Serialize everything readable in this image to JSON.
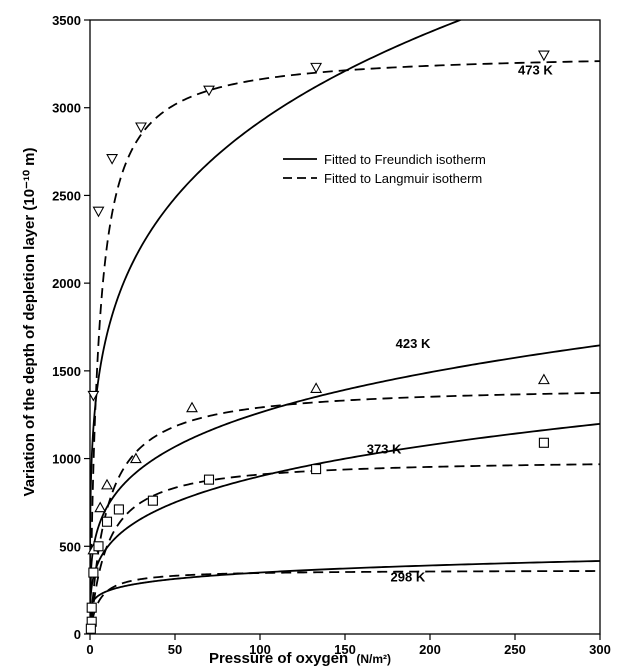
{
  "chart_data": {
    "type": "scatter",
    "xlabel": "Pressure of oxygen",
    "xlabel_unit": "(N/m²)",
    "ylabel": "Variation of the depth of depletion layer (10⁻¹⁰ m)",
    "xlim": [
      0,
      300
    ],
    "ylim": [
      0,
      3500
    ],
    "xticks": [
      0,
      50,
      100,
      150,
      200,
      250,
      300
    ],
    "yticks": [
      0,
      500,
      1000,
      1500,
      2000,
      2500,
      3000,
      3500
    ],
    "legend": {
      "placement": "upper-right",
      "entries": [
        {
          "label": "Fitted to Freundich isotherm",
          "style": "solid"
        },
        {
          "label": "Fitted to Langmuir isotherm",
          "style": "dashed"
        }
      ]
    },
    "series": [
      {
        "name": "473 K",
        "marker": "triangle-down",
        "points": [
          [
            2,
            1360
          ],
          [
            5,
            2410
          ],
          [
            13,
            2710
          ],
          [
            30,
            2890
          ],
          [
            70,
            3100
          ],
          [
            133,
            3230
          ],
          [
            267,
            3300
          ]
        ],
        "freundlich": {
          "a": 1000,
          "b": 0.2327
        },
        "langmuir": {
          "vmax": 3320,
          "k": 0.2
        },
        "label_pos": [
          262,
          3190
        ]
      },
      {
        "name": "423 K",
        "marker": "triangle-up",
        "points": [
          [
            2,
            480
          ],
          [
            6,
            720
          ],
          [
            10,
            850
          ],
          [
            27,
            1000
          ],
          [
            60,
            1290
          ],
          [
            133,
            1400
          ],
          [
            267,
            1450
          ]
        ],
        "freundlich": {
          "a": 415,
          "b": 0.2415
        },
        "langmuir": {
          "vmax": 1420,
          "k": 0.1
        },
        "label_pos": [
          190,
          1630
        ]
      },
      {
        "name": "373 K",
        "marker": "square",
        "points": [
          [
            1,
            70
          ],
          [
            2,
            350
          ],
          [
            5,
            500
          ],
          [
            10,
            640
          ],
          [
            17,
            710
          ],
          [
            37,
            760
          ],
          [
            70,
            880
          ],
          [
            133,
            940
          ],
          [
            267,
            1090
          ]
        ],
        "freundlich": {
          "a": 270,
          "b": 0.2612
        },
        "langmuir": {
          "vmax": 1000,
          "k": 0.1
        },
        "label_pos": [
          173,
          1030
        ]
      },
      {
        "name": "298 K",
        "marker": "square",
        "points": [
          [
            0.5,
            30
          ],
          [
            1,
            150
          ]
        ],
        "freundlich": {
          "a": 170,
          "b": 0.157
        },
        "langmuir": {
          "vmax": 365,
          "k": 0.2
        },
        "label_pos": [
          187,
          300
        ]
      }
    ]
  }
}
